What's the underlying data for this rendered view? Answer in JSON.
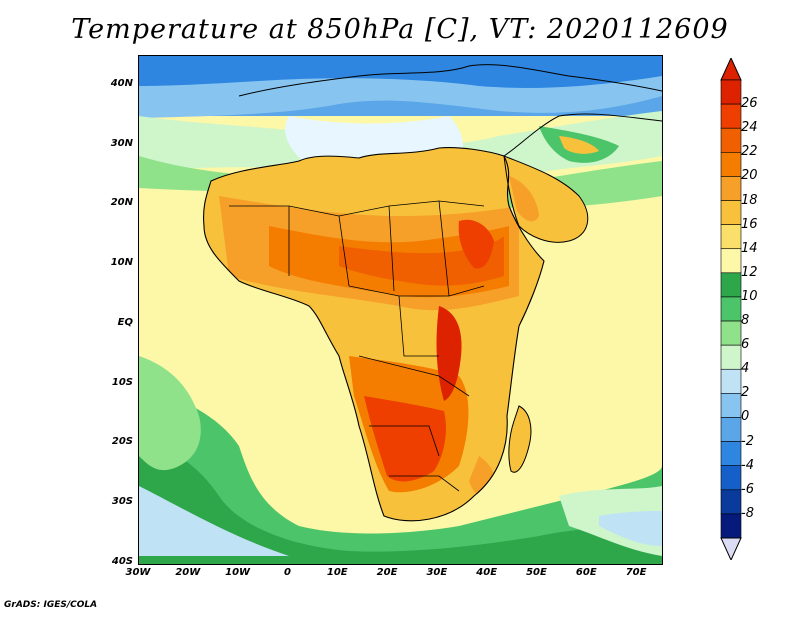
{
  "title": "Temperature at 850hPa [C], VT: 2020112609",
  "footer": "GrADS: IGES/COLA",
  "map": {
    "lon_range": [
      -30,
      75
    ],
    "lat_range": [
      -40,
      45
    ],
    "lat_ticks": [
      {
        "value": 40,
        "label": "40N"
      },
      {
        "value": 30,
        "label": "30N"
      },
      {
        "value": 20,
        "label": "20N"
      },
      {
        "value": 10,
        "label": "10N"
      },
      {
        "value": 0,
        "label": "EQ"
      },
      {
        "value": -10,
        "label": "10S"
      },
      {
        "value": -20,
        "label": "20S"
      },
      {
        "value": -30,
        "label": "30S"
      },
      {
        "value": -40,
        "label": "40S"
      }
    ],
    "lon_ticks": [
      {
        "value": -30,
        "label": "30W"
      },
      {
        "value": -20,
        "label": "20W"
      },
      {
        "value": -10,
        "label": "10W"
      },
      {
        "value": 0,
        "label": "0"
      },
      {
        "value": 10,
        "label": "10E"
      },
      {
        "value": 20,
        "label": "20E"
      },
      {
        "value": 30,
        "label": "30E"
      },
      {
        "value": 40,
        "label": "40E"
      },
      {
        "value": 50,
        "label": "50E"
      },
      {
        "value": 60,
        "label": "60E"
      },
      {
        "value": 70,
        "label": "70E"
      }
    ]
  },
  "colorbar": {
    "labels": [
      "26",
      "24",
      "22",
      "20",
      "18",
      "16",
      "14",
      "12",
      "10",
      "8",
      "6",
      "4",
      "2",
      "0",
      "-2",
      "-4",
      "-6",
      "-8"
    ],
    "colors": [
      "#dd2200",
      "#ee3f00",
      "#f06000",
      "#f47d00",
      "#f6a02a",
      "#f8c13c",
      "#fadf6a",
      "#fcf8a8",
      "#2ea64a",
      "#4cc46a",
      "#8fe28a",
      "#cff5cb",
      "#bfe2f5",
      "#88c4f0",
      "#5aa6e8",
      "#2e86e0",
      "#1560c8",
      "#0a3a9c",
      "#061a7c"
    ],
    "tip_top_color": "#dd2200",
    "tip_bottom_color": "#dcdcf4"
  }
}
